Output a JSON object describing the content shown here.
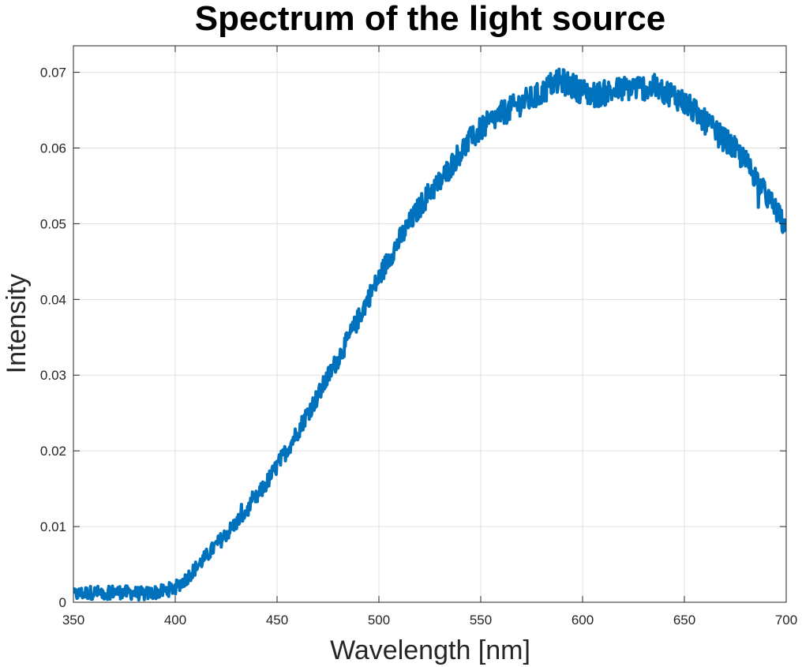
{
  "chart_data": {
    "type": "line",
    "title": "Spectrum of the light source",
    "xlabel": "Wavelength [nm]",
    "ylabel": "Intensity",
    "xlim": [
      350,
      700
    ],
    "ylim": [
      0,
      0.0735
    ],
    "xticks": [
      350,
      400,
      450,
      500,
      550,
      600,
      650,
      700
    ],
    "xtick_labels": [
      "350",
      "400",
      "450",
      "500",
      "550",
      "600",
      "650",
      "700"
    ],
    "yticks": [
      0,
      0.01,
      0.02,
      0.03,
      0.04,
      0.05,
      0.06,
      0.07
    ],
    "ytick_labels": [
      "0",
      "0.01",
      "0.02",
      "0.03",
      "0.04",
      "0.05",
      "0.06",
      "0.07"
    ],
    "grid": true,
    "series": [
      {
        "color": "#0072BD",
        "x": [
          350,
          355,
          360,
          365,
          370,
          375,
          380,
          385,
          390,
          395,
          400,
          405,
          410,
          415,
          420,
          425,
          430,
          435,
          440,
          445,
          450,
          455,
          460,
          465,
          470,
          475,
          480,
          485,
          490,
          495,
          500,
          505,
          510,
          515,
          520,
          525,
          530,
          535,
          540,
          545,
          550,
          555,
          560,
          565,
          570,
          575,
          580,
          585,
          590,
          595,
          600,
          605,
          610,
          615,
          620,
          625,
          630,
          635,
          640,
          645,
          650,
          655,
          660,
          665,
          670,
          675,
          680,
          685,
          690,
          695,
          700
        ],
        "values": [
          0.001,
          0.0012,
          0.0013,
          0.0012,
          0.0014,
          0.0013,
          0.0012,
          0.0011,
          0.0013,
          0.0015,
          0.002,
          0.003,
          0.0045,
          0.006,
          0.0075,
          0.009,
          0.0105,
          0.012,
          0.0138,
          0.0158,
          0.018,
          0.0202,
          0.0225,
          0.025,
          0.0272,
          0.0298,
          0.0322,
          0.0348,
          0.0375,
          0.0403,
          0.0428,
          0.0455,
          0.0478,
          0.05,
          0.0522,
          0.0542,
          0.0555,
          0.0575,
          0.0595,
          0.061,
          0.0625,
          0.0635,
          0.0645,
          0.0652,
          0.066,
          0.0665,
          0.0672,
          0.0685,
          0.0688,
          0.0682,
          0.0675,
          0.067,
          0.0672,
          0.0675,
          0.0678,
          0.068,
          0.068,
          0.0678,
          0.0675,
          0.067,
          0.066,
          0.0648,
          0.0635,
          0.0622,
          0.061,
          0.0598,
          0.0582,
          0.0562,
          0.0538,
          0.0518,
          0.0492
        ]
      }
    ]
  }
}
